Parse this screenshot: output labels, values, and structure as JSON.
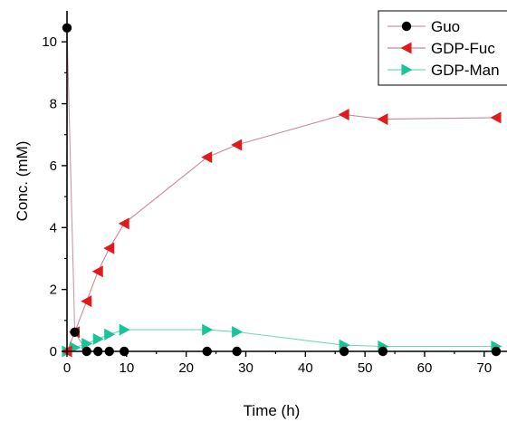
{
  "chart_data": {
    "type": "line",
    "title": "",
    "xlabel": "Time (h)",
    "ylabel": "Conc. (mM)",
    "xlim": [
      0,
      72
    ],
    "ylim": [
      0,
      11
    ],
    "xticks": [
      0,
      10,
      20,
      30,
      40,
      50,
      60,
      70
    ],
    "yticks": [
      0,
      2,
      4,
      6,
      8,
      10
    ],
    "grid": false,
    "legend_position": "top-right",
    "series": [
      {
        "name": "Guo",
        "color": "#000000",
        "line_color": "#c79aa6",
        "marker": "circle",
        "x": [
          0,
          1.3,
          3.3,
          5.2,
          7.1,
          9.6,
          23.5,
          28.5,
          46.5,
          53,
          72
        ],
        "y": [
          10.45,
          0.62,
          0,
          0,
          0,
          0,
          0,
          0,
          0,
          0,
          0
        ]
      },
      {
        "name": "GDP-Fuc",
        "color": "#e01b1b",
        "line_color": "#c78a96",
        "marker": "triangle-left",
        "x": [
          0,
          1.3,
          3.3,
          5.2,
          7.1,
          9.6,
          23.5,
          28.5,
          46.5,
          53,
          72
        ],
        "y": [
          0,
          0.62,
          1.62,
          2.58,
          3.33,
          4.13,
          6.27,
          6.67,
          7.65,
          7.5,
          7.55
        ]
      },
      {
        "name": "GDP-Man",
        "color": "#19c497",
        "line_color": "#6fd9b9",
        "marker": "triangle-right",
        "x": [
          0,
          1.3,
          3.3,
          5.2,
          7.1,
          9.6,
          23.5,
          28.5,
          46.5,
          53,
          72
        ],
        "y": [
          0,
          0.12,
          0.25,
          0.4,
          0.55,
          0.7,
          0.7,
          0.63,
          0.2,
          0.16,
          0.16
        ]
      }
    ]
  }
}
